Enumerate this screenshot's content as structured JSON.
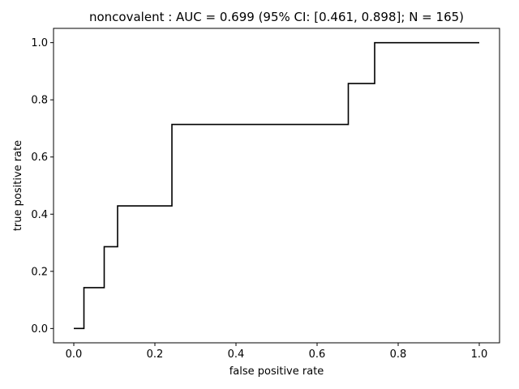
{
  "chart_data": {
    "type": "line",
    "title": "noncovalent : AUC = 0.699 (95% CI: [0.461, 0.898]; N = 165)",
    "xlabel": "false positive rate",
    "ylabel": "true positive rate",
    "xlim": [
      -0.05,
      1.05
    ],
    "ylim": [
      -0.05,
      1.05
    ],
    "xticks": [
      0.0,
      0.2,
      0.4,
      0.6,
      0.8,
      1.0
    ],
    "xtick_labels": [
      "0.0",
      "0.2",
      "0.4",
      "0.6",
      "0.8",
      "1.0"
    ],
    "yticks": [
      0.0,
      0.2,
      0.4,
      0.6,
      0.8,
      1.0
    ],
    "ytick_labels": [
      "0.0",
      "0.2",
      "0.4",
      "0.6",
      "0.8",
      "1.0"
    ],
    "grid": false,
    "line_color": "#000000",
    "series": [
      {
        "x": [
          0.0,
          0.025,
          0.025,
          0.075,
          0.075,
          0.108,
          0.108,
          0.242,
          0.242,
          0.677,
          0.677,
          0.742,
          0.742,
          1.0
        ],
        "y": [
          0.0,
          0.0,
          0.143,
          0.143,
          0.286,
          0.286,
          0.429,
          0.429,
          0.714,
          0.714,
          0.857,
          0.857,
          1.0,
          1.0
        ]
      }
    ]
  }
}
